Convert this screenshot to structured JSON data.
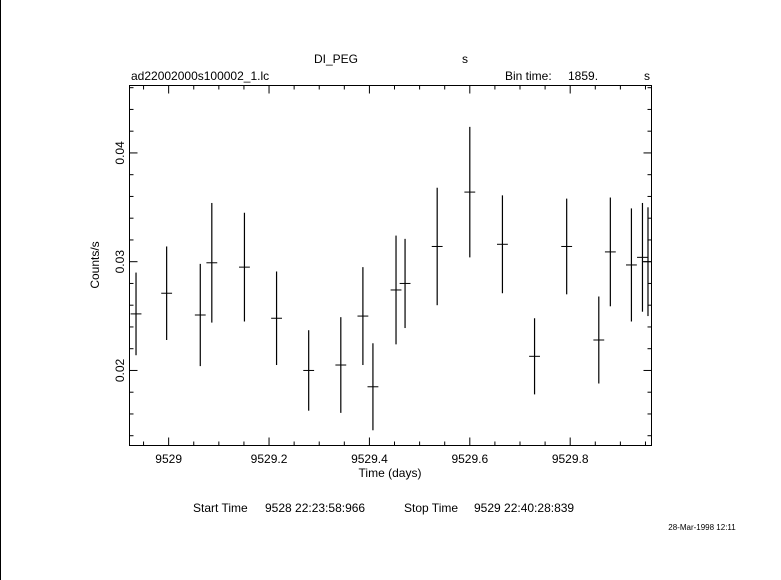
{
  "header": {
    "object": "DI_PEG",
    "object_unit": "s",
    "file": "ad22002000s100002_1.lc",
    "bin_time_label": "Bin time:",
    "bin_time_value": "1859.",
    "bin_time_unit": "s"
  },
  "footer": {
    "start_label": "Start Time",
    "start_value": "9528 22:23:58:966",
    "stop_label": "Stop Time",
    "stop_value": "9529 22:40:28:839",
    "stamp": "28-Mar-1998 12:11"
  },
  "chart_data": {
    "type": "scatter",
    "title": "DI_PEG",
    "xlabel": "Time (days)",
    "ylabel": "Counts/s",
    "xlim": [
      9528.922,
      9529.962
    ],
    "ylim": [
      0.0131,
      0.0462
    ],
    "xticks": [
      9529,
      9529.2,
      9529.4,
      9529.6,
      9529.8
    ],
    "xtick_labels": [
      "9529",
      "9529.2",
      "9529.4",
      "9529.6",
      "9529.8"
    ],
    "yticks": [
      0.02,
      0.03,
      0.04
    ],
    "ytick_labels": [
      "0.02",
      "0.03",
      "0.04"
    ],
    "grid": false,
    "x_halfwidth": 0.0108,
    "points": [
      {
        "x": 9528.935,
        "y": 0.0252,
        "err": 0.0038
      },
      {
        "x": 9528.996,
        "y": 0.0271,
        "err": 0.0043
      },
      {
        "x": 9529.063,
        "y": 0.0251,
        "err": 0.0047
      },
      {
        "x": 9529.086,
        "y": 0.0299,
        "err": 0.0055
      },
      {
        "x": 9529.151,
        "y": 0.0295,
        "err": 0.005
      },
      {
        "x": 9529.215,
        "y": 0.0248,
        "err": 0.0043
      },
      {
        "x": 9529.279,
        "y": 0.02,
        "err": 0.0037
      },
      {
        "x": 9529.343,
        "y": 0.0205,
        "err": 0.0044
      },
      {
        "x": 9529.387,
        "y": 0.025,
        "err": 0.0045
      },
      {
        "x": 9529.407,
        "y": 0.0185,
        "err": 0.004
      },
      {
        "x": 9529.453,
        "y": 0.0274,
        "err": 0.005
      },
      {
        "x": 9529.471,
        "y": 0.028,
        "err": 0.0041
      },
      {
        "x": 9529.535,
        "y": 0.0314,
        "err": 0.0054
      },
      {
        "x": 9529.6,
        "y": 0.0364,
        "err": 0.006
      },
      {
        "x": 9529.665,
        "y": 0.0316,
        "err": 0.0045
      },
      {
        "x": 9529.729,
        "y": 0.0213,
        "err": 0.0035
      },
      {
        "x": 9529.793,
        "y": 0.0314,
        "err": 0.0044
      },
      {
        "x": 9529.857,
        "y": 0.0228,
        "err": 0.004
      },
      {
        "x": 9529.88,
        "y": 0.0309,
        "err": 0.005
      },
      {
        "x": 9529.922,
        "y": 0.0297,
        "err": 0.0052
      },
      {
        "x": 9529.944,
        "y": 0.0304,
        "err": 0.005
      },
      {
        "x": 9529.955,
        "y": 0.03,
        "err": 0.005
      }
    ]
  }
}
